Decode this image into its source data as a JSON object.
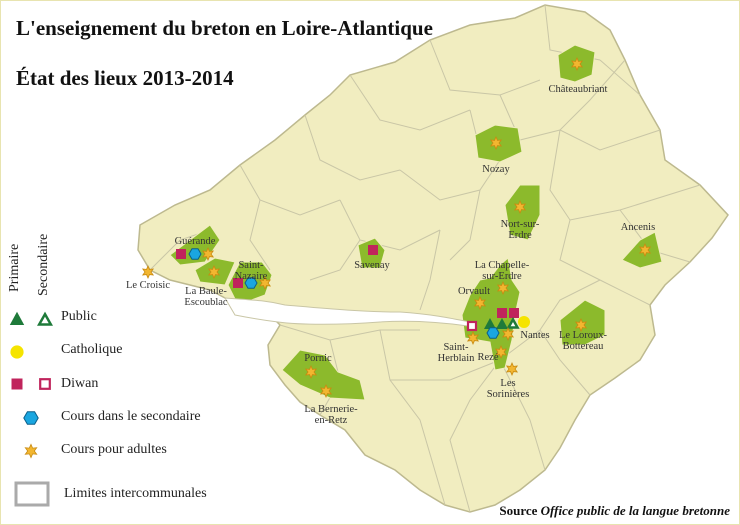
{
  "title": "L'enseignement du breton en Loire-Atlantique",
  "subtitle": "État des lieux 2013-2014",
  "legend": {
    "column_primary": "Primaire",
    "column_secondary": "Secondaire",
    "items": [
      {
        "label": "Public",
        "icon": "triangle",
        "color": "#1e7a3a"
      },
      {
        "label": "Catholique",
        "icon": "circle",
        "color": "#f5e400"
      },
      {
        "label": "Diwan",
        "icon": "square",
        "color": "#c0245c"
      },
      {
        "label": "Cours dans le secondaire",
        "icon": "hexagon",
        "color": "#1aa6e0"
      },
      {
        "label": "Cours pour adultes",
        "icon": "star",
        "color": "#f2b630"
      },
      {
        "label": "Limites intercommunales",
        "icon": "outline-box",
        "color": "#aaaaaa"
      }
    ]
  },
  "source_label": "Source",
  "source_name": "Office public de la langue bretonne",
  "colors": {
    "land": "#f1edc0",
    "area": "#8cba2c",
    "border": "#c9c6a6",
    "sea": "#ffffff"
  },
  "places": [
    {
      "name": "Châteaubriant",
      "markers": [
        "adult"
      ]
    },
    {
      "name": "Nozay",
      "markers": [
        "adult"
      ]
    },
    {
      "name": "Nort-sur-\nErdre",
      "markers": [
        "adult"
      ]
    },
    {
      "name": "Ancenis",
      "markers": [
        "adult"
      ]
    },
    {
      "name": "Savenay",
      "markers": [
        "diwan-primary"
      ]
    },
    {
      "name": "Guérande",
      "markers": [
        "diwan-primary",
        "secondary-course",
        "adult"
      ]
    },
    {
      "name": "Le Croisic",
      "markers": [
        "adult"
      ]
    },
    {
      "name": "La Baule-\nEscoublac",
      "markers": [
        "adult"
      ]
    },
    {
      "name": "Saint-\nNazaire",
      "markers": [
        "diwan-primary",
        "secondary-course",
        "adult"
      ]
    },
    {
      "name": "La Chapelle-\nsur-Erdre",
      "markers": [
        "adult"
      ]
    },
    {
      "name": "Orvault",
      "markers": [
        "adult"
      ]
    },
    {
      "name": "Saint-\nHerblain",
      "markers": [
        "diwan-secondary",
        "adult"
      ]
    },
    {
      "name": "Nantes",
      "markers": [
        "diwan-primary",
        "diwan-primary",
        "public-primary",
        "public-primary",
        "public-secondary",
        "catholic",
        "secondary-course",
        "adult"
      ]
    },
    {
      "name": "Rezé",
      "markers": [
        "adult"
      ]
    },
    {
      "name": "Les\nSorinières",
      "markers": [
        "adult"
      ]
    },
    {
      "name": "Le Loroux-\nBottereau",
      "markers": [
        "adult"
      ]
    },
    {
      "name": "Pornic",
      "markers": [
        "adult"
      ]
    },
    {
      "name": "La Bernerie-\nen-Retz",
      "markers": [
        "adult"
      ]
    }
  ]
}
